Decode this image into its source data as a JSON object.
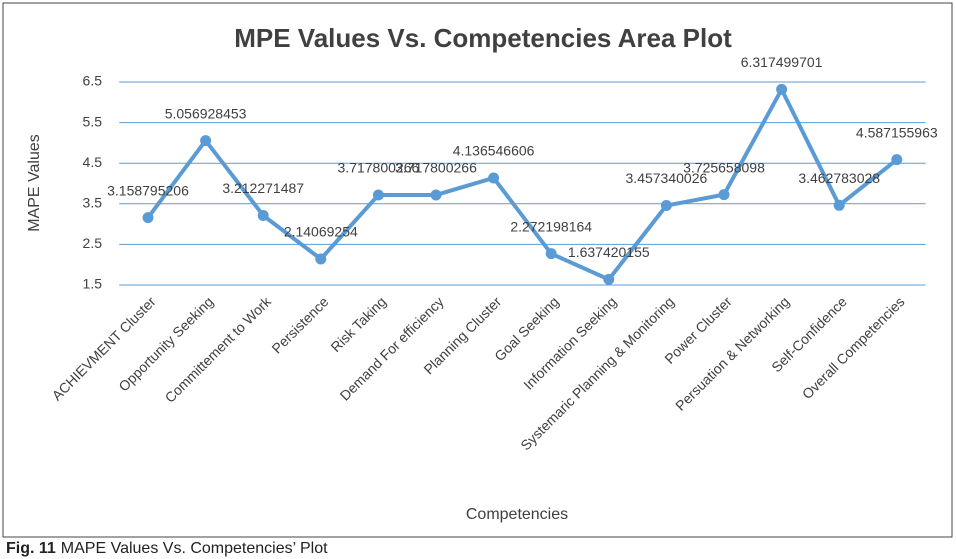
{
  "chart_data": {
    "type": "line",
    "title": "MPE Values Vs. Competencies Area Plot",
    "x_label": "Competencies",
    "y_label": "MAPE Values",
    "categories": [
      "ACHIEVMENT Cluster",
      "Opportunity Seeking",
      "Committement to Work",
      "Persistence",
      "Risk Taking",
      "Demand For efficiency",
      "Planning Cluster",
      "Goal Seeking",
      "Information Seeking",
      "Systemaric Planning & Monitoring",
      "Power Cluster",
      "Persuation & Networking",
      "Self-Confidence",
      "Overall Competencies"
    ],
    "values": [
      3.158795206,
      5.056928453,
      3.212271487,
      2.14069254,
      3.717800266,
      3.717800266,
      4.136546606,
      2.272198164,
      1.637420155,
      3.457340026,
      3.725658098,
      6.317499701,
      3.462783028,
      4.587155963
    ],
    "color": "#5b9bd5",
    "grid_color": "#5b9bd5",
    "ylim": [
      1.5,
      6.5
    ],
    "yticks": [
      1.5,
      2.5,
      3.5,
      4.5,
      5.5,
      6.5
    ],
    "grid": true
  },
  "caption": {
    "label": "Fig. 11",
    "text": "MAPE Values Vs. Competencies’ Plot"
  }
}
